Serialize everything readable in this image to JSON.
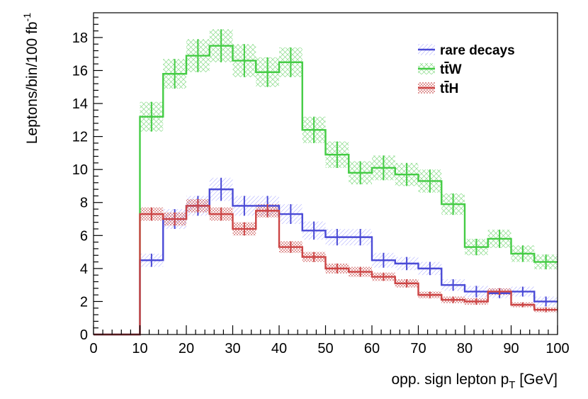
{
  "chart_data": {
    "type": "line",
    "step": true,
    "xlabel_main": "opp. sign lepton p",
    "xlabel_sub": "T",
    "xlabel_unit": " [GeV]",
    "ylabel_main": "Leptons/bin/100 fb",
    "ylabel_sup": "-1",
    "xlim": [
      0,
      100
    ],
    "ylim": [
      0,
      19.5
    ],
    "x_ticks": [
      0,
      10,
      20,
      30,
      40,
      50,
      60,
      70,
      80,
      90,
      100
    ],
    "y_ticks": [
      0,
      2,
      4,
      6,
      8,
      10,
      12,
      14,
      16,
      18
    ],
    "bin_edges": [
      0,
      5,
      10,
      15,
      20,
      25,
      30,
      35,
      40,
      45,
      50,
      55,
      60,
      65,
      70,
      75,
      80,
      85,
      90,
      95,
      100
    ],
    "series": [
      {
        "name": "rare decays",
        "color": "#4a4ad6",
        "values": [
          0,
          0,
          4.5,
          7.0,
          7.8,
          8.8,
          7.8,
          7.8,
          7.3,
          6.3,
          5.9,
          5.9,
          4.5,
          4.3,
          4.0,
          3.0,
          2.6,
          2.5,
          2.6,
          2.0
        ],
        "errors": [
          0,
          0,
          0.4,
          0.6,
          0.6,
          0.7,
          0.6,
          0.6,
          0.6,
          0.55,
          0.5,
          0.5,
          0.45,
          0.4,
          0.4,
          0.35,
          0.35,
          0.3,
          0.3,
          0.3
        ]
      },
      {
        "name": "ttW",
        "legend_base": "t",
        "legend_bar": "t",
        "legend_suffix": "W",
        "color": "#44cc44",
        "values": [
          0,
          0,
          13.2,
          15.8,
          16.9,
          17.5,
          16.6,
          15.9,
          16.5,
          12.4,
          10.9,
          9.8,
          10.1,
          9.7,
          9.3,
          7.9,
          5.3,
          5.8,
          4.9,
          4.4
        ],
        "errors": [
          0,
          0,
          0.9,
          0.9,
          1.0,
          1.0,
          1.0,
          0.9,
          0.9,
          0.8,
          0.8,
          0.7,
          0.75,
          0.7,
          0.7,
          0.65,
          0.5,
          0.55,
          0.5,
          0.45
        ]
      },
      {
        "name": "ttH",
        "legend_base": "t",
        "legend_bar": "t",
        "legend_suffix": "H",
        "color": "#cc4444",
        "values": [
          0,
          0,
          7.3,
          7.0,
          7.8,
          7.3,
          6.4,
          7.5,
          5.3,
          4.7,
          4.0,
          3.8,
          3.5,
          3.1,
          2.4,
          2.1,
          2.0,
          2.6,
          1.8,
          1.5
        ],
        "errors": [
          0,
          0,
          0.4,
          0.4,
          0.4,
          0.4,
          0.4,
          0.4,
          0.35,
          0.3,
          0.3,
          0.3,
          0.25,
          0.25,
          0.2,
          0.2,
          0.2,
          0.2,
          0.15,
          0.15
        ]
      }
    ]
  }
}
